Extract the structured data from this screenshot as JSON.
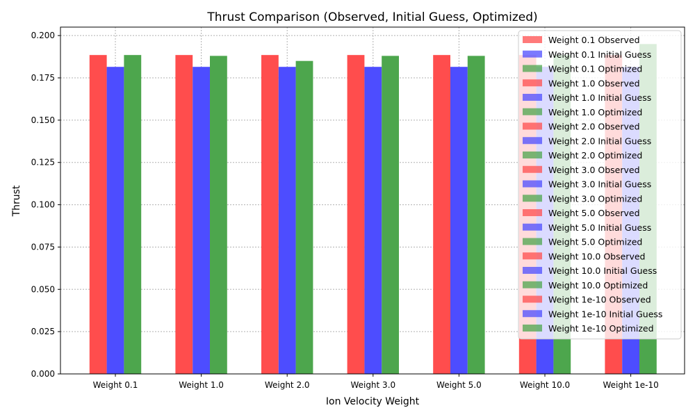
{
  "chart_data": {
    "type": "bar",
    "title": "Thrust Comparison (Observed, Initial Guess, Optimized)",
    "xlabel": "Ion Velocity Weight",
    "ylabel": "Thrust",
    "categories": [
      "Weight 0.1",
      "Weight 1.0",
      "Weight 2.0",
      "Weight 3.0",
      "Weight 5.0",
      "Weight 10.0",
      "Weight 1e-10"
    ],
    "ylim": [
      0,
      0.205
    ],
    "yticks": [
      0.0,
      0.025,
      0.05,
      0.075,
      0.1,
      0.125,
      0.15,
      0.175,
      0.2
    ],
    "ytick_labels": [
      "0.000",
      "0.025",
      "0.050",
      "0.075",
      "0.100",
      "0.125",
      "0.150",
      "0.175",
      "0.200"
    ],
    "grid": true,
    "legend_position": "top-right",
    "series": [
      {
        "name": "Observed",
        "color": "#ff4d4d",
        "values": [
          0.1885,
          0.1885,
          0.1885,
          0.1885,
          0.1885,
          0.1885,
          0.1885
        ]
      },
      {
        "name": "Initial Guess",
        "color": "#4d4dff",
        "values": [
          0.1815,
          0.1815,
          0.1815,
          0.1815,
          0.1815,
          0.1815,
          0.1815
        ]
      },
      {
        "name": "Optimized",
        "color": "#4da64d",
        "values": [
          0.1885,
          0.188,
          0.185,
          0.188,
          0.188,
          0.1885,
          0.195
        ]
      }
    ],
    "legend_entries": [
      {
        "label": "Weight 0.1 Observed",
        "color": "#ff4d4d"
      },
      {
        "label": "Weight 0.1 Initial Guess",
        "color": "#4d4dff"
      },
      {
        "label": "Weight 0.1 Optimized",
        "color": "#4da64d"
      },
      {
        "label": "Weight 1.0 Observed",
        "color": "#ff4d4d"
      },
      {
        "label": "Weight 1.0 Initial Guess",
        "color": "#4d4dff"
      },
      {
        "label": "Weight 1.0 Optimized",
        "color": "#4da64d"
      },
      {
        "label": "Weight 2.0 Observed",
        "color": "#ff4d4d"
      },
      {
        "label": "Weight 2.0 Initial Guess",
        "color": "#4d4dff"
      },
      {
        "label": "Weight 2.0 Optimized",
        "color": "#4da64d"
      },
      {
        "label": "Weight 3.0 Observed",
        "color": "#ff4d4d"
      },
      {
        "label": "Weight 3.0 Initial Guess",
        "color": "#4d4dff"
      },
      {
        "label": "Weight 3.0 Optimized",
        "color": "#4da64d"
      },
      {
        "label": "Weight 5.0 Observed",
        "color": "#ff4d4d"
      },
      {
        "label": "Weight 5.0 Initial Guess",
        "color": "#4d4dff"
      },
      {
        "label": "Weight 5.0 Optimized",
        "color": "#4da64d"
      },
      {
        "label": "Weight 10.0 Observed",
        "color": "#ff4d4d"
      },
      {
        "label": "Weight 10.0 Initial Guess",
        "color": "#4d4dff"
      },
      {
        "label": "Weight 10.0 Optimized",
        "color": "#4da64d"
      },
      {
        "label": "Weight 1e-10 Observed",
        "color": "#ff4d4d"
      },
      {
        "label": "Weight 1e-10 Initial Guess",
        "color": "#4d4dff"
      },
      {
        "label": "Weight 1e-10 Optimized",
        "color": "#4da64d"
      }
    ]
  }
}
